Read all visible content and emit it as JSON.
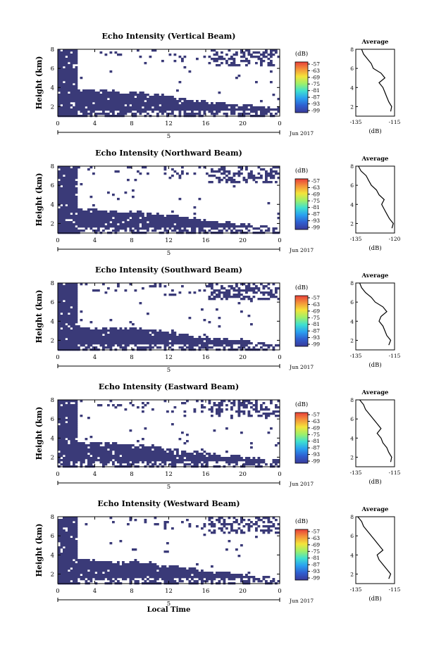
{
  "figure": {
    "x_axis_label": "Local Time",
    "date_label": "Jun 2017",
    "day_label": "5",
    "colorbar_unit": "(dB)",
    "colorbar_ticks": [
      "-57",
      "-63",
      "-69",
      "-75",
      "-81",
      "-87",
      "-93",
      "-99"
    ],
    "colorbar_colors": [
      "#3a3a99",
      "#2f5fd0",
      "#2aa0f0",
      "#3fe0d0",
      "#9ef06a",
      "#f4e43a",
      "#f4943a",
      "#e8403a"
    ],
    "fill_color": "#3a3a78",
    "average_title": "Average",
    "average_unit": "(dB)"
  },
  "chart_data": [
    {
      "type": "heatmap",
      "title": "Echo Intensity (Vertical Beam)",
      "ylabel": "Height (km)",
      "xlim": [
        0,
        24
      ],
      "ylim": [
        1,
        8
      ],
      "x_ticks": [
        "0",
        "4",
        "8",
        "12",
        "16",
        "20",
        "0"
      ],
      "y_ticks": [
        "2",
        "4",
        "6",
        "8"
      ],
      "echo_top_km": [
        [
          0,
          4.1
        ],
        [
          2,
          4.0
        ],
        [
          4,
          3.9
        ],
        [
          6,
          3.8
        ],
        [
          8,
          3.7
        ],
        [
          10,
          3.5
        ],
        [
          12,
          3.2
        ],
        [
          14,
          2.9
        ],
        [
          16,
          2.7
        ],
        [
          18,
          2.5
        ],
        [
          20,
          2.3
        ],
        [
          22,
          2.2
        ],
        [
          24,
          2.1
        ]
      ],
      "average_profile": {
        "xlim": [
          -135,
          -115
        ],
        "ylim": [
          1,
          8
        ],
        "x_ticks": [
          "-135",
          "-115"
        ],
        "y_ticks": [
          "2",
          "4",
          "6",
          "8"
        ],
        "height_km": [
          1.5,
          2,
          2.5,
          3,
          3.5,
          4,
          4.5,
          5,
          5.5,
          6,
          6.5,
          7,
          7.5,
          8
        ],
        "intensity_db": [
          -117,
          -116.5,
          -118,
          -119,
          -120,
          -121,
          -123,
          -120,
          -122,
          -126,
          -127,
          -129,
          -131,
          -132
        ]
      }
    },
    {
      "type": "heatmap",
      "title": "Echo Intensity (Northward Beam)",
      "ylabel": "Height (km)",
      "xlim": [
        0,
        24
      ],
      "ylim": [
        1,
        8
      ],
      "x_ticks": [
        "0",
        "4",
        "8",
        "12",
        "16",
        "20",
        "0"
      ],
      "y_ticks": [
        "2",
        "4",
        "6",
        "8"
      ],
      "echo_top_km": [
        [
          0,
          3.9
        ],
        [
          2,
          3.7
        ],
        [
          4,
          3.6
        ],
        [
          6,
          3.5
        ],
        [
          8,
          3.4
        ],
        [
          10,
          3.3
        ],
        [
          12,
          3.0
        ],
        [
          14,
          2.8
        ],
        [
          16,
          2.5
        ],
        [
          18,
          2.3
        ],
        [
          20,
          2.1
        ],
        [
          22,
          1.9
        ],
        [
          24,
          1.7
        ]
      ],
      "average_profile": {
        "xlim": [
          -135,
          -120
        ],
        "ylim": [
          1,
          8
        ],
        "x_ticks": [
          "-135",
          "-120"
        ],
        "y_ticks": [
          "2",
          "4",
          "6",
          "8"
        ],
        "height_km": [
          1.5,
          2,
          2.5,
          3,
          3.5,
          4,
          4.5,
          5,
          5.5,
          6,
          6.5,
          7,
          7.5,
          8
        ],
        "intensity_db": [
          -121,
          -120.5,
          -122,
          -123,
          -124,
          -125,
          -124,
          -126,
          -127,
          -129,
          -130,
          -131,
          -133,
          -134
        ]
      }
    },
    {
      "type": "heatmap",
      "title": "Echo Intensity (Southward Beam)",
      "ylabel": "Height (km)",
      "xlim": [
        0,
        24
      ],
      "ylim": [
        1,
        8
      ],
      "x_ticks": [
        "0",
        "4",
        "8",
        "12",
        "16",
        "20",
        "0"
      ],
      "y_ticks": [
        "2",
        "4",
        "6",
        "8"
      ],
      "echo_top_km": [
        [
          0,
          3.8
        ],
        [
          2,
          3.6
        ],
        [
          4,
          3.5
        ],
        [
          6,
          3.5
        ],
        [
          8,
          3.4
        ],
        [
          10,
          3.3
        ],
        [
          12,
          3.0
        ],
        [
          14,
          2.7
        ],
        [
          16,
          2.5
        ],
        [
          18,
          2.3
        ],
        [
          20,
          2.1
        ],
        [
          22,
          1.9
        ],
        [
          24,
          1.7
        ]
      ],
      "average_profile": {
        "xlim": [
          -135,
          -115
        ],
        "ylim": [
          1,
          8
        ],
        "x_ticks": [
          "-135",
          "-115"
        ],
        "y_ticks": [
          "2",
          "4",
          "6",
          "8"
        ],
        "height_km": [
          1.5,
          2,
          2.5,
          3,
          3.5,
          4,
          4.5,
          5,
          5.5,
          6,
          6.5,
          7,
          7.5,
          8
        ],
        "intensity_db": [
          -118,
          -117,
          -119,
          -120,
          -121,
          -123,
          -122,
          -119,
          -121,
          -125,
          -127,
          -130,
          -132,
          -133
        ]
      }
    },
    {
      "type": "heatmap",
      "title": "Echo Intensity (Eastward Beam)",
      "ylabel": "Height (km)",
      "xlim": [
        0,
        24
      ],
      "ylim": [
        1,
        8
      ],
      "x_ticks": [
        "0",
        "4",
        "8",
        "12",
        "16",
        "20",
        "0"
      ],
      "y_ticks": [
        "2",
        "4",
        "6",
        "8"
      ],
      "echo_top_km": [
        [
          0,
          4.0
        ],
        [
          2,
          3.8
        ],
        [
          4,
          3.7
        ],
        [
          6,
          3.6
        ],
        [
          8,
          3.5
        ],
        [
          10,
          3.4
        ],
        [
          12,
          3.0
        ],
        [
          14,
          2.8
        ],
        [
          16,
          2.6
        ],
        [
          18,
          2.4
        ],
        [
          20,
          2.2
        ],
        [
          22,
          2.0
        ],
        [
          24,
          1.8
        ]
      ],
      "average_profile": {
        "xlim": [
          -135,
          -115
        ],
        "ylim": [
          1,
          8
        ],
        "x_ticks": [
          "-135",
          "-115"
        ],
        "y_ticks": [
          "2",
          "4",
          "6",
          "8"
        ],
        "height_km": [
          1.5,
          2,
          2.5,
          3,
          3.5,
          4,
          4.5,
          5,
          5.5,
          6,
          6.5,
          7,
          7.5,
          8
        ],
        "intensity_db": [
          -117,
          -116.5,
          -118,
          -119,
          -121,
          -122,
          -124,
          -122,
          -124,
          -126,
          -128,
          -130,
          -131,
          -133
        ]
      }
    },
    {
      "type": "heatmap",
      "title": "Echo Intensity (Westward Beam)",
      "ylabel": "Height (km)",
      "xlim": [
        0,
        24
      ],
      "ylim": [
        1,
        8
      ],
      "x_ticks": [
        "0",
        "4",
        "8",
        "12",
        "16",
        "20",
        "0"
      ],
      "y_ticks": [
        "2",
        "4",
        "6",
        "8"
      ],
      "echo_top_km": [
        [
          0,
          4.0
        ],
        [
          2,
          3.8
        ],
        [
          4,
          3.6
        ],
        [
          6,
          3.5
        ],
        [
          8,
          3.4
        ],
        [
          10,
          3.3
        ],
        [
          12,
          3.0
        ],
        [
          14,
          2.8
        ],
        [
          16,
          2.5
        ],
        [
          18,
          2.3
        ],
        [
          20,
          2.1
        ],
        [
          22,
          1.9
        ],
        [
          24,
          1.7
        ]
      ],
      "average_profile": {
        "xlim": [
          -135,
          -115
        ],
        "ylim": [
          1,
          8
        ],
        "x_ticks": [
          "-135",
          "-115"
        ],
        "y_ticks": [
          "2",
          "4",
          "6",
          "8"
        ],
        "height_km": [
          1.5,
          2,
          2.5,
          3,
          3.5,
          4,
          4.5,
          5,
          5.5,
          6,
          6.5,
          7,
          7.5,
          8
        ],
        "intensity_db": [
          -118,
          -117,
          -119,
          -121,
          -123,
          -124,
          -121,
          -123,
          -125,
          -127,
          -129,
          -131,
          -132,
          -134
        ]
      }
    }
  ]
}
